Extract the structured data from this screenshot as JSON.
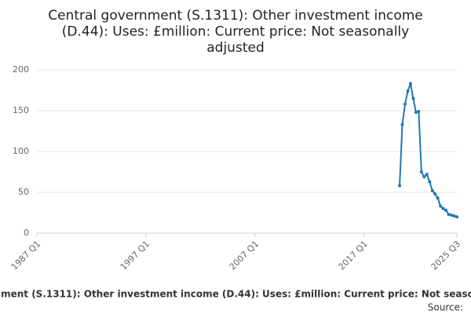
{
  "chart_data": {
    "type": "line",
    "title": "Central government (S.1311): Other investment income (D.44): Uses: £million: Current price: Not seasonally adjusted",
    "source": "Source:",
    "categories": [
      "1987 Q1",
      "1987 Q2",
      "1987 Q3",
      "1987 Q4",
      "1988 Q1",
      "1988 Q2",
      "1988 Q3",
      "1988 Q4",
      "1989 Q1",
      "1989 Q2",
      "1989 Q3",
      "1989 Q4",
      "1990 Q1",
      "1990 Q2",
      "1990 Q3",
      "1990 Q4",
      "1991 Q1",
      "1991 Q2",
      "1991 Q3",
      "1991 Q4",
      "1992 Q1",
      "1992 Q2",
      "1992 Q3",
      "1992 Q4",
      "1993 Q1",
      "1993 Q2",
      "1993 Q3",
      "1993 Q4",
      "1994 Q1",
      "1994 Q2",
      "1994 Q3",
      "1994 Q4",
      "1995 Q1",
      "1995 Q2",
      "1995 Q3",
      "1995 Q4",
      "1996 Q1",
      "1996 Q2",
      "1996 Q3",
      "1996 Q4",
      "1997 Q1",
      "1997 Q2",
      "1997 Q3",
      "1997 Q4",
      "1998 Q1",
      "1998 Q2",
      "1998 Q3",
      "1998 Q4",
      "1999 Q1",
      "1999 Q2",
      "1999 Q3",
      "1999 Q4",
      "2000 Q1",
      "2000 Q2",
      "2000 Q3",
      "2000 Q4",
      "2001 Q1",
      "2001 Q2",
      "2001 Q3",
      "2001 Q4",
      "2002 Q1",
      "2002 Q2",
      "2002 Q3",
      "2002 Q4",
      "2003 Q1",
      "2003 Q2",
      "2003 Q3",
      "2003 Q4",
      "2004 Q1",
      "2004 Q2",
      "2004 Q3",
      "2004 Q4",
      "2005 Q1",
      "2005 Q2",
      "2005 Q3",
      "2005 Q4",
      "2006 Q1",
      "2006 Q2",
      "2006 Q3",
      "2006 Q4",
      "2007 Q1",
      "2007 Q2",
      "2007 Q3",
      "2007 Q4",
      "2008 Q1",
      "2008 Q2",
      "2008 Q3",
      "2008 Q4",
      "2009 Q1",
      "2009 Q2",
      "2009 Q3",
      "2009 Q4",
      "2010 Q1",
      "2010 Q2",
      "2010 Q3",
      "2010 Q4",
      "2011 Q1",
      "2011 Q2",
      "2011 Q3",
      "2011 Q4",
      "2012 Q1",
      "2012 Q2",
      "2012 Q3",
      "2012 Q4",
      "2013 Q1",
      "2013 Q2",
      "2013 Q3",
      "2013 Q4",
      "2014 Q1",
      "2014 Q2",
      "2014 Q3",
      "2014 Q4",
      "2015 Q1",
      "2015 Q2",
      "2015 Q3",
      "2015 Q4",
      "2016 Q1",
      "2016 Q2",
      "2016 Q3",
      "2016 Q4",
      "2017 Q1",
      "2017 Q2",
      "2017 Q3",
      "2017 Q4",
      "2018 Q1",
      "2018 Q2",
      "2018 Q3",
      "2018 Q4",
      "2019 Q1",
      "2019 Q2",
      "2019 Q3",
      "2019 Q4",
      "2020 Q1",
      "2020 Q2",
      "2020 Q3",
      "2020 Q4",
      "2021 Q1",
      "2021 Q2",
      "2021 Q3",
      "2021 Q4",
      "2022 Q1",
      "2022 Q2",
      "2022 Q3",
      "2022 Q4",
      "2023 Q1",
      "2023 Q2",
      "2023 Q3",
      "2023 Q4",
      "2024 Q1",
      "2024 Q2",
      "2024 Q3",
      "2024 Q4",
      "2025 Q1",
      "2025 Q2",
      "2025 Q3"
    ],
    "values": [
      null,
      null,
      null,
      null,
      null,
      null,
      null,
      null,
      null,
      null,
      null,
      null,
      null,
      null,
      null,
      null,
      null,
      null,
      null,
      null,
      null,
      null,
      null,
      null,
      null,
      null,
      null,
      null,
      null,
      null,
      null,
      null,
      null,
      null,
      null,
      null,
      null,
      null,
      null,
      null,
      null,
      null,
      null,
      null,
      null,
      null,
      null,
      null,
      null,
      null,
      null,
      null,
      null,
      null,
      null,
      null,
      null,
      null,
      null,
      null,
      null,
      null,
      null,
      null,
      null,
      null,
      null,
      null,
      null,
      null,
      null,
      null,
      null,
      null,
      null,
      null,
      null,
      null,
      null,
      null,
      null,
      null,
      null,
      null,
      null,
      null,
      null,
      null,
      null,
      null,
      null,
      null,
      null,
      null,
      null,
      null,
      null,
      null,
      null,
      null,
      null,
      null,
      null,
      null,
      null,
      null,
      null,
      null,
      null,
      null,
      null,
      null,
      null,
      null,
      null,
      null,
      null,
      null,
      null,
      null,
      null,
      null,
      null,
      null,
      null,
      null,
      null,
      null,
      null,
      null,
      null,
      null,
      null,
      58,
      133,
      158,
      174,
      183,
      165,
      148,
      149,
      75,
      69,
      72,
      63,
      52,
      48,
      43,
      33,
      30,
      28,
      23,
      22,
      21,
      20
    ],
    "color": "#1f77b4",
    "ylim": [
      0,
      200
    ],
    "yticks": [
      0,
      50,
      100,
      150,
      200
    ],
    "grid": true
  }
}
